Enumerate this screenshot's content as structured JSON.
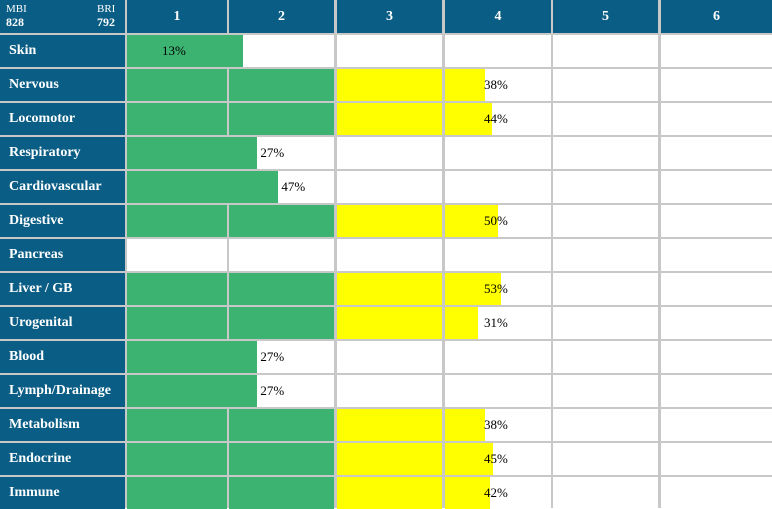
{
  "header": {
    "mbi_label": "MBI",
    "mbi_value": "828",
    "bri_label": "BRI",
    "bri_value": "792"
  },
  "colors": {
    "header_bg": "#0a5d84",
    "grid_line": "#c8c8c8",
    "level_low": "#3cb371",
    "level_high": "#ffff00"
  },
  "chart_data": {
    "type": "bar",
    "orientation": "horizontal",
    "categories": [
      "Skin",
      "Nervous",
      "Locomotor",
      "Respiratory",
      "Cardiovascular",
      "Digestive",
      "Pancreas",
      "Liver / GB",
      "Urogenital",
      "Blood",
      "Lymph/Drainage",
      "Metabolism",
      "Endocrine",
      "Immune"
    ],
    "columns": [
      "1",
      "2",
      "3",
      "4",
      "5",
      "6"
    ],
    "levels": [
      1,
      3,
      3,
      1,
      1,
      3,
      null,
      3,
      3,
      1,
      1,
      3,
      3,
      3
    ],
    "percent_labels": [
      "13%",
      "38%",
      "44%",
      "27%",
      "47%",
      "50%",
      "",
      "53%",
      "31%",
      "27%",
      "27%",
      "38%",
      "45%",
      "42%"
    ],
    "values": [
      1.13,
      3.38,
      3.44,
      1.27,
      1.47,
      3.5,
      null,
      3.53,
      3.31,
      1.27,
      1.27,
      3.38,
      3.45,
      3.42
    ],
    "xlim": [
      0,
      6
    ],
    "grid": true
  }
}
